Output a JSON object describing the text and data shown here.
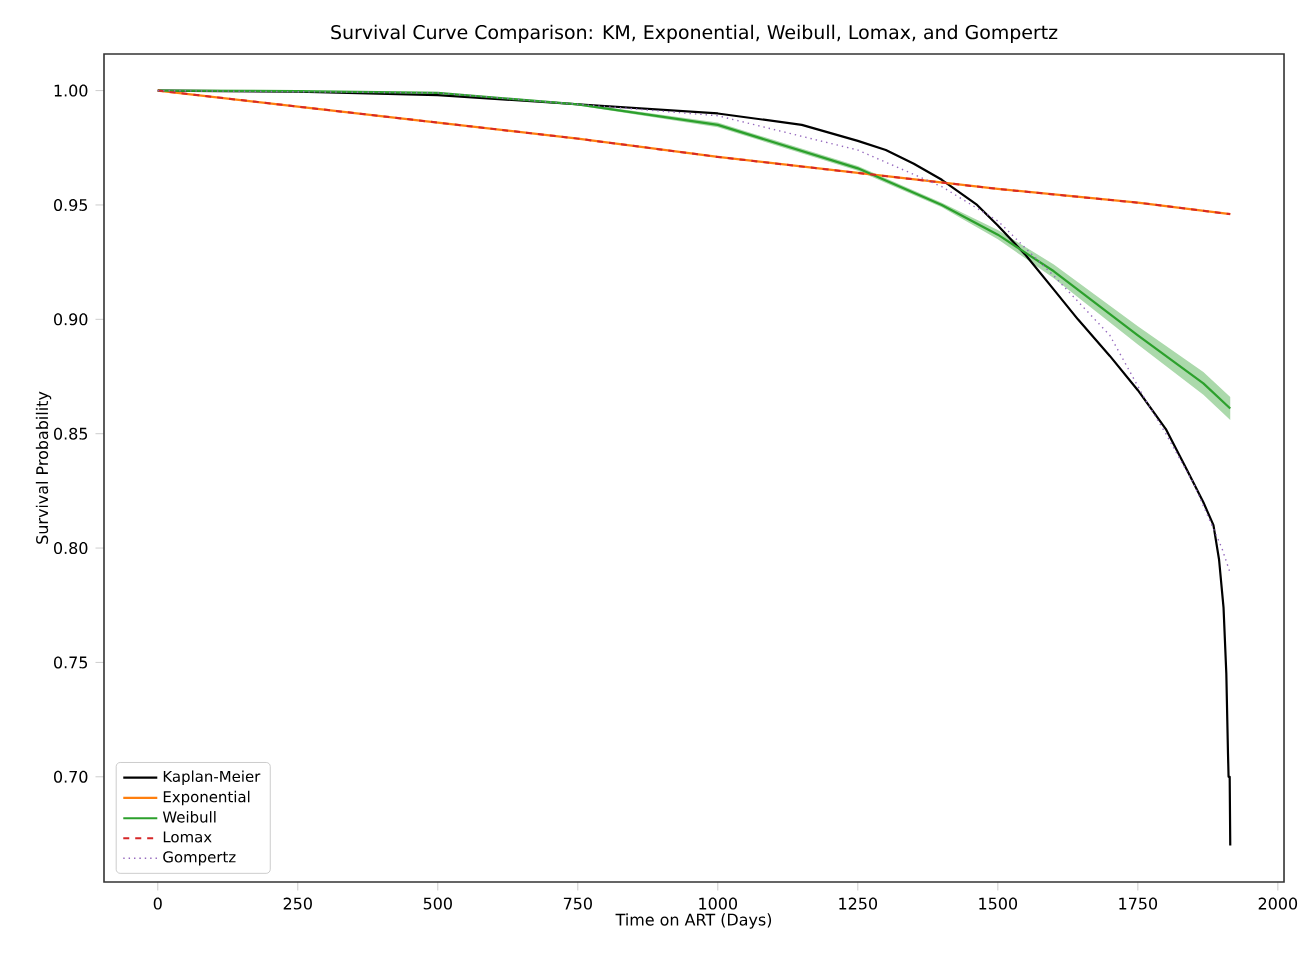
{
  "chart_data": {
    "type": "line",
    "title": "Survival Curve Comparison: KM, Exponential, Weibull, Lomax, and Gompertz",
    "xlabel": "Time on ART (Days)",
    "ylabel": "Survival Probability",
    "xlim": [
      -96,
      2011
    ],
    "ylim": [
      0.654,
      1.016
    ],
    "xticks": [
      0,
      250,
      500,
      750,
      1000,
      1250,
      1500,
      1750,
      2000
    ],
    "yticks": [
      {
        "value": 0.7,
        "label": "0.70"
      },
      {
        "value": 0.75,
        "label": "0.75"
      },
      {
        "value": 0.8,
        "label": "0.80"
      },
      {
        "value": 0.85,
        "label": "0.85"
      },
      {
        "value": 0.9,
        "label": "0.90"
      },
      {
        "value": 0.95,
        "label": "0.95"
      },
      {
        "value": 1.0,
        "label": "1.00"
      }
    ],
    "grid": false,
    "legend": "bottom left",
    "series": [
      {
        "name": "Kaplan-Meier",
        "color": "#000000",
        "line_style": "solid",
        "x": [
          0,
          250,
          500,
          750,
          1000,
          1150,
          1250,
          1300,
          1350,
          1400,
          1463,
          1500,
          1550,
          1600,
          1643,
          1700,
          1750,
          1800,
          1838,
          1867,
          1885,
          1895,
          1903,
          1908,
          1911,
          1912,
          1914,
          1915
        ],
        "values": [
          1.0,
          0.9995,
          0.998,
          0.994,
          0.99,
          0.985,
          0.978,
          0.974,
          0.968,
          0.961,
          0.95,
          0.941,
          0.928,
          0.913,
          0.9,
          0.884,
          0.869,
          0.852,
          0.834,
          0.82,
          0.81,
          0.795,
          0.774,
          0.745,
          0.71,
          0.7,
          0.7,
          0.67
        ]
      },
      {
        "name": "Exponential",
        "color": "#ff7f0e",
        "line_style": "solid",
        "x": [
          0,
          250,
          500,
          750,
          1000,
          1250,
          1500,
          1750,
          1915
        ],
        "values": [
          1.0,
          0.993,
          0.986,
          0.979,
          0.971,
          0.964,
          0.957,
          0.951,
          0.946
        ]
      },
      {
        "name": "Weibull",
        "color": "#2ca02c",
        "line_style": "solid",
        "x": [
          0,
          250,
          500,
          750,
          1000,
          1250,
          1400,
          1500,
          1600,
          1750,
          1867,
          1915
        ],
        "values": [
          1.0,
          0.9998,
          0.999,
          0.994,
          0.985,
          0.966,
          0.95,
          0.937,
          0.921,
          0.893,
          0.872,
          0.861
        ],
        "lower": [
          1.0,
          0.9998,
          0.9988,
          0.9935,
          0.984,
          0.965,
          0.949,
          0.935,
          0.918,
          0.889,
          0.867,
          0.856
        ],
        "upper": [
          1.0,
          0.9998,
          0.9992,
          0.9945,
          0.986,
          0.967,
          0.951,
          0.939,
          0.924,
          0.897,
          0.877,
          0.866
        ]
      },
      {
        "name": "Lomax",
        "color": "#d62728",
        "line_style": "dashed",
        "x": [
          0,
          250,
          500,
          750,
          1000,
          1250,
          1500,
          1750,
          1915
        ],
        "values": [
          1.0,
          0.993,
          0.986,
          0.979,
          0.971,
          0.964,
          0.957,
          0.951,
          0.946
        ]
      },
      {
        "name": "Gompertz",
        "color": "#9467bd",
        "line_style": "dotted",
        "x": [
          0,
          500,
          1000,
          1250,
          1400,
          1500,
          1600,
          1700,
          1763,
          1800,
          1850,
          1900,
          1915
        ],
        "values": [
          1.0,
          0.999,
          0.989,
          0.974,
          0.958,
          0.943,
          0.919,
          0.893,
          0.865,
          0.85,
          0.828,
          0.8,
          0.789
        ]
      }
    ]
  }
}
